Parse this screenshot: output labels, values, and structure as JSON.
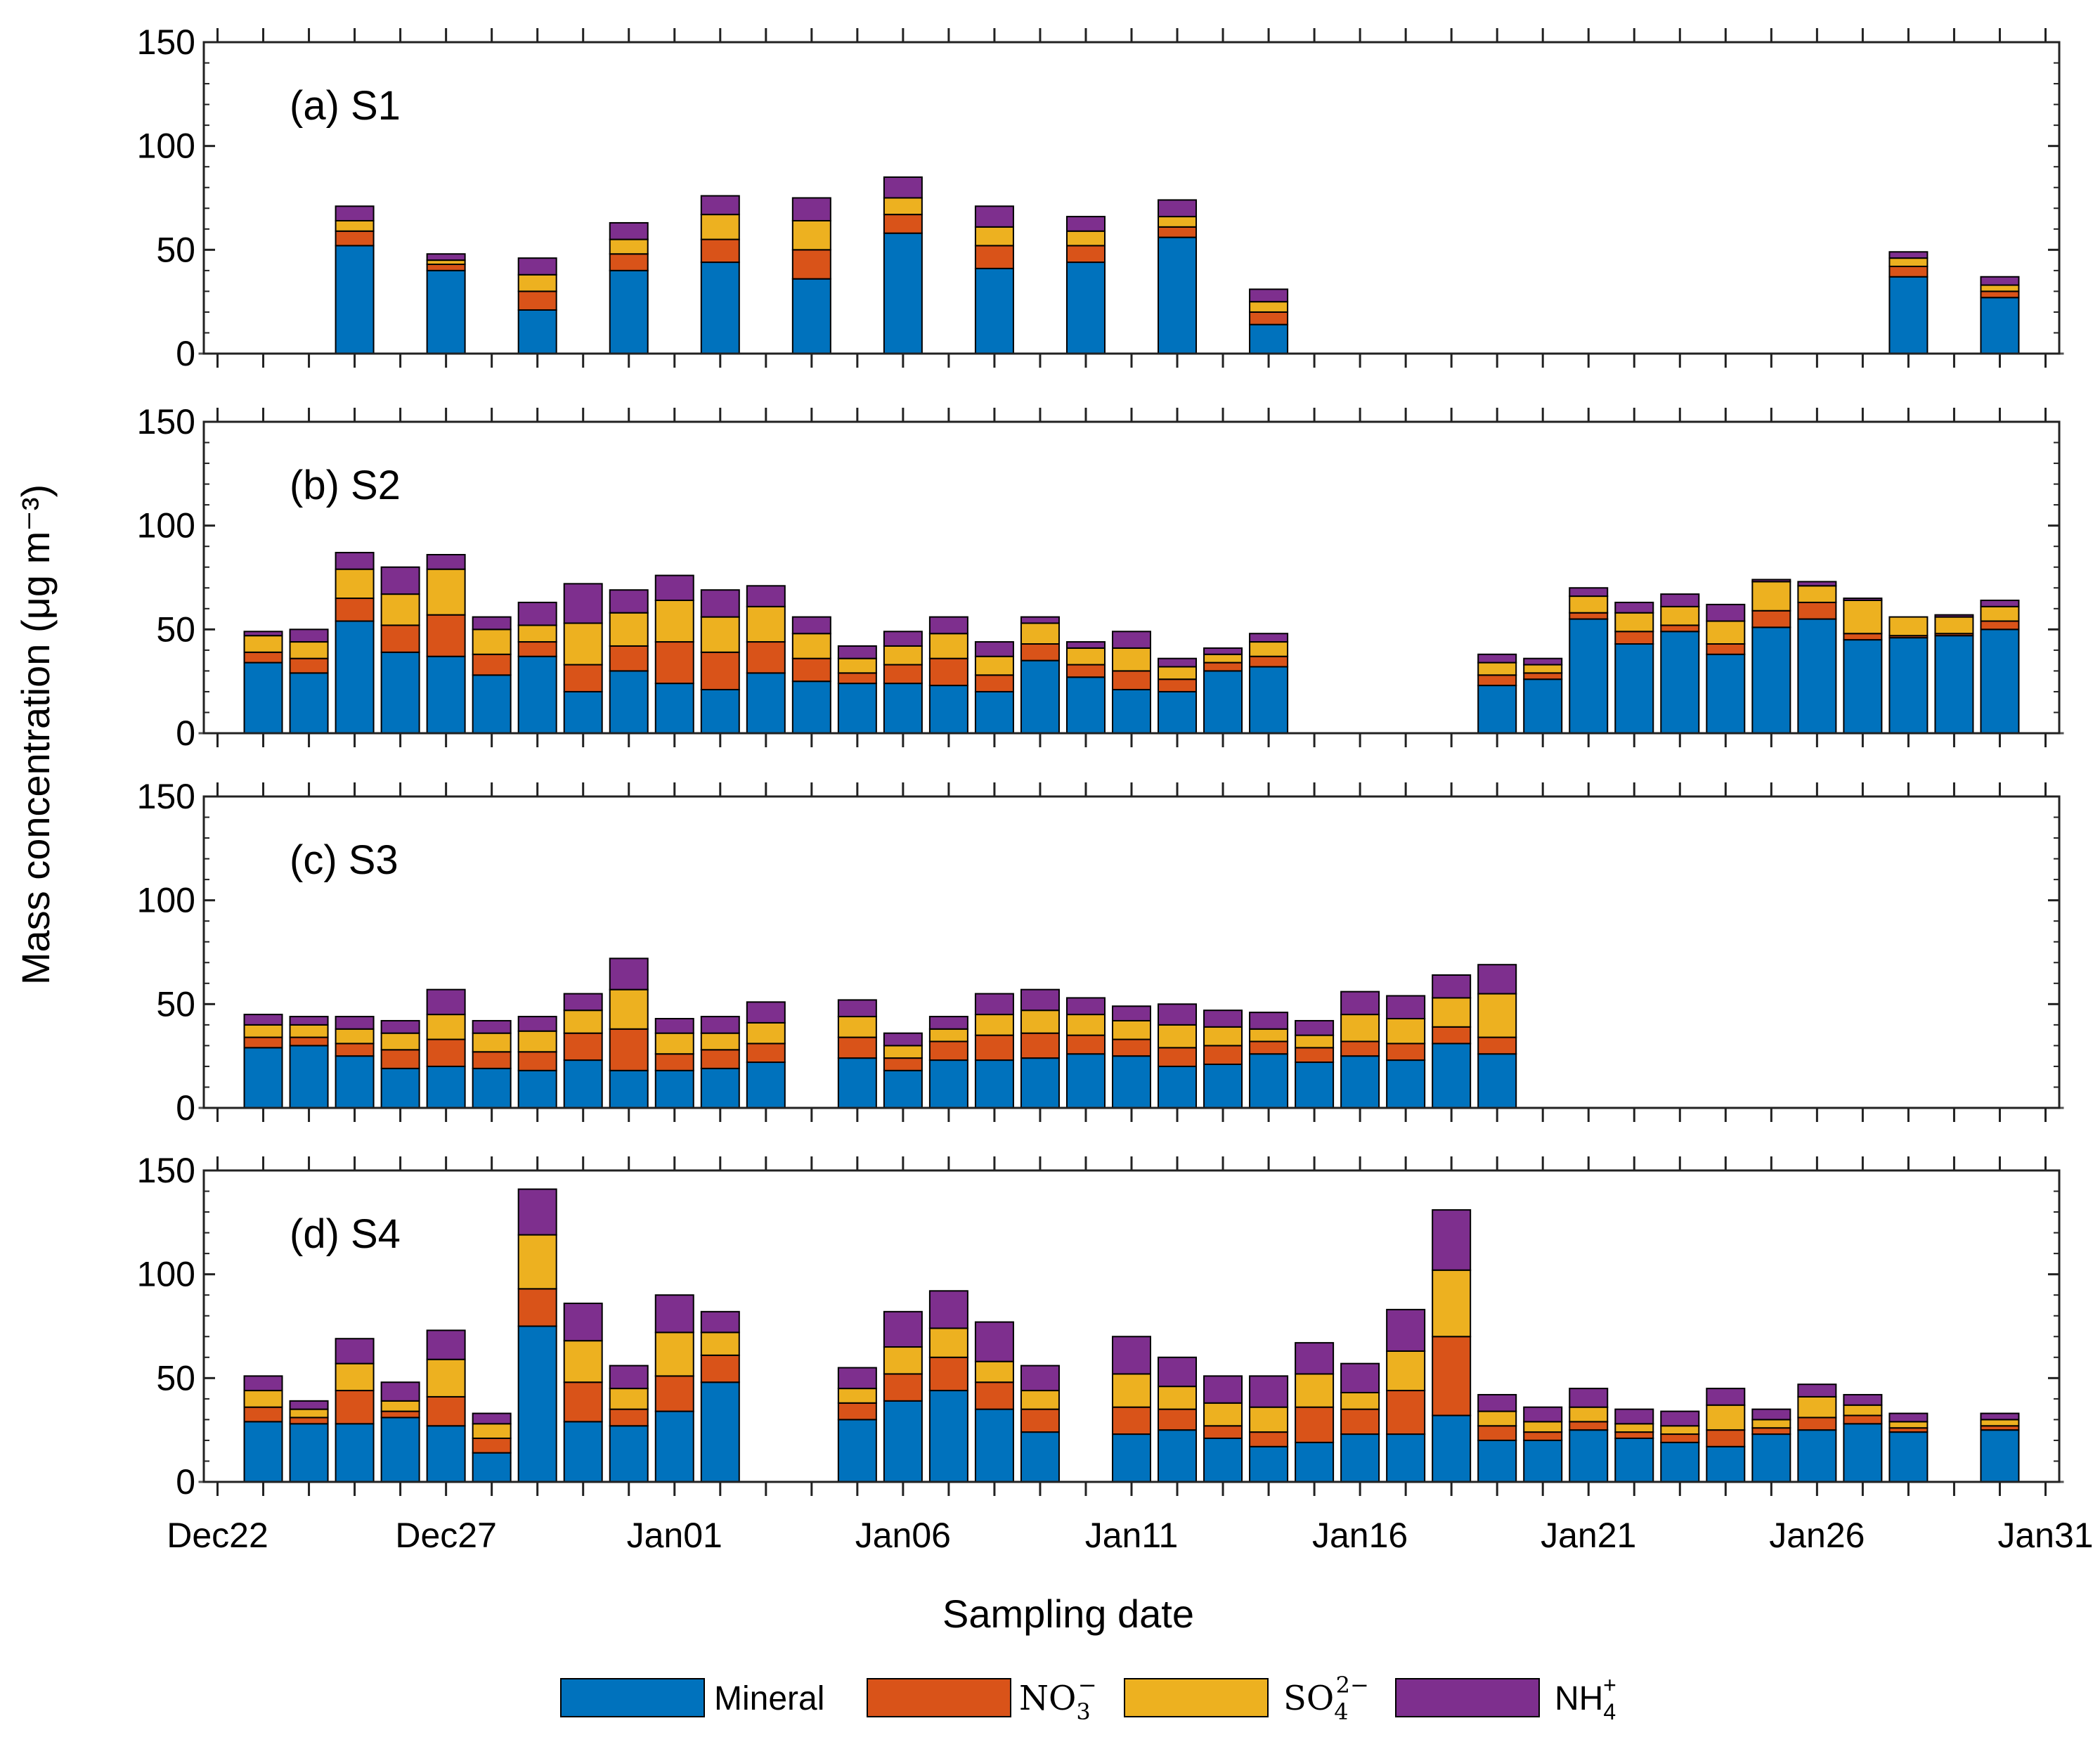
{
  "chart_data": {
    "type": "bar",
    "stacked": true,
    "xlabel": "Sampling date",
    "ylabel": "Mass concentration (μg m⁻³)",
    "ylim": [
      0,
      150
    ],
    "yticks": [
      0,
      50,
      100,
      150
    ],
    "xlim": [
      21.7,
      62.3
    ],
    "xticks": [
      {
        "x": 22,
        "label": "Dec22"
      },
      {
        "x": 27,
        "label": "Dec27"
      },
      {
        "x": 32,
        "label": "Jan01"
      },
      {
        "x": 37,
        "label": "Jan06"
      },
      {
        "x": 42,
        "label": "Jan11"
      },
      {
        "x": 47,
        "label": "Jan16"
      },
      {
        "x": 52,
        "label": "Jan21"
      },
      {
        "x": 57,
        "label": "Jan26"
      },
      {
        "x": 62,
        "label": "Jan31"
      }
    ],
    "day_ticks": [
      22,
      23,
      24,
      25,
      26,
      27,
      28,
      29,
      30,
      31,
      32,
      33,
      34,
      35,
      36,
      37,
      38,
      39,
      40,
      41,
      42,
      43,
      44,
      45,
      46,
      47,
      48,
      49,
      50,
      51,
      52,
      53,
      54,
      55,
      56,
      57,
      58,
      59,
      60,
      61,
      62
    ],
    "components": [
      {
        "key": "mineral",
        "color": "#0072BD"
      },
      {
        "key": "no3",
        "color": "#D95319"
      },
      {
        "key": "so4",
        "color": "#EDB120"
      },
      {
        "key": "nh4",
        "color": "#7E2F8E"
      }
    ],
    "legend": {
      "placement": "bottom",
      "mineral": "Mineral",
      "no3": {
        "base": "NO",
        "sub": "3",
        "sup": "−"
      },
      "so4": {
        "base": "SO",
        "sub": "4",
        "sup": "2−"
      },
      "nh4": {
        "base": "NH",
        "sub": "4",
        "sup": "+"
      }
    },
    "panels": [
      {
        "label": "(a) S1",
        "bars": [
          {
            "x": 25,
            "values": [
              52,
              7,
              5,
              7
            ]
          },
          {
            "x": 27,
            "values": [
              40,
              3,
              2,
              3
            ]
          },
          {
            "x": 29,
            "values": [
              21,
              9,
              8,
              8
            ]
          },
          {
            "x": 31,
            "values": [
              40,
              8,
              7,
              8
            ]
          },
          {
            "x": 33,
            "values": [
              44,
              11,
              12,
              9
            ]
          },
          {
            "x": 35,
            "values": [
              36,
              14,
              14,
              11
            ]
          },
          {
            "x": 37,
            "values": [
              58,
              9,
              8,
              10
            ]
          },
          {
            "x": 39,
            "values": [
              41,
              11,
              9,
              10
            ]
          },
          {
            "x": 41,
            "values": [
              44,
              8,
              7,
              7
            ]
          },
          {
            "x": 43,
            "values": [
              56,
              5,
              5,
              8
            ]
          },
          {
            "x": 45,
            "values": [
              14,
              6,
              5,
              6
            ]
          },
          {
            "x": 59,
            "values": [
              37,
              5,
              4,
              3
            ]
          },
          {
            "x": 61,
            "values": [
              27,
              3,
              3,
              4
            ]
          }
        ]
      },
      {
        "label": "(b) S2",
        "bars": [
          {
            "x": 23,
            "values": [
              34,
              5,
              8,
              2
            ]
          },
          {
            "x": 24,
            "values": [
              29,
              7,
              8,
              6
            ]
          },
          {
            "x": 25,
            "values": [
              54,
              11,
              14,
              8
            ]
          },
          {
            "x": 26,
            "values": [
              39,
              13,
              15,
              13
            ]
          },
          {
            "x": 27,
            "values": [
              37,
              20,
              22,
              7
            ]
          },
          {
            "x": 28,
            "values": [
              28,
              10,
              12,
              6
            ]
          },
          {
            "x": 29,
            "values": [
              37,
              7,
              8,
              11
            ]
          },
          {
            "x": 30,
            "values": [
              20,
              13,
              20,
              19
            ]
          },
          {
            "x": 31,
            "values": [
              30,
              12,
              16,
              11
            ]
          },
          {
            "x": 32,
            "values": [
              24,
              20,
              20,
              12
            ]
          },
          {
            "x": 33,
            "values": [
              21,
              18,
              17,
              13
            ]
          },
          {
            "x": 34,
            "values": [
              29,
              15,
              17,
              10
            ]
          },
          {
            "x": 35,
            "values": [
              25,
              11,
              12,
              8
            ]
          },
          {
            "x": 36,
            "values": [
              24,
              5,
              7,
              6
            ]
          },
          {
            "x": 37,
            "values": [
              24,
              9,
              9,
              7
            ]
          },
          {
            "x": 38,
            "values": [
              23,
              13,
              12,
              8
            ]
          },
          {
            "x": 39,
            "values": [
              20,
              8,
              9,
              7
            ]
          },
          {
            "x": 40,
            "values": [
              35,
              8,
              10,
              3
            ]
          },
          {
            "x": 41,
            "values": [
              27,
              6,
              8,
              3
            ]
          },
          {
            "x": 42,
            "values": [
              21,
              9,
              11,
              8
            ]
          },
          {
            "x": 43,
            "values": [
              20,
              6,
              6,
              4
            ]
          },
          {
            "x": 44,
            "values": [
              30,
              4,
              4,
              3
            ]
          },
          {
            "x": 45,
            "values": [
              32,
              5,
              7,
              4
            ]
          },
          {
            "x": 50,
            "values": [
              23,
              5,
              6,
              4
            ]
          },
          {
            "x": 51,
            "values": [
              26,
              3,
              4,
              3
            ]
          },
          {
            "x": 52,
            "values": [
              55,
              3,
              8,
              4
            ]
          },
          {
            "x": 53,
            "values": [
              43,
              6,
              9,
              5
            ]
          },
          {
            "x": 54,
            "values": [
              49,
              3,
              9,
              6
            ]
          },
          {
            "x": 55,
            "values": [
              38,
              5,
              11,
              8
            ]
          },
          {
            "x": 56,
            "values": [
              51,
              8,
              14,
              1
            ]
          },
          {
            "x": 57,
            "values": [
              55,
              8,
              8,
              2
            ]
          },
          {
            "x": 58,
            "values": [
              45,
              3,
              16,
              1
            ]
          },
          {
            "x": 59,
            "values": [
              46,
              1,
              9,
              0
            ]
          },
          {
            "x": 60,
            "values": [
              47,
              1,
              8,
              1
            ]
          },
          {
            "x": 61,
            "values": [
              50,
              4,
              7,
              3
            ]
          }
        ]
      },
      {
        "label": "(c) S3",
        "bars": [
          {
            "x": 23,
            "values": [
              29,
              5,
              6,
              5
            ]
          },
          {
            "x": 24,
            "values": [
              30,
              4,
              6,
              4
            ]
          },
          {
            "x": 25,
            "values": [
              25,
              6,
              7,
              6
            ]
          },
          {
            "x": 26,
            "values": [
              19,
              9,
              8,
              6
            ]
          },
          {
            "x": 27,
            "values": [
              20,
              13,
              12,
              12
            ]
          },
          {
            "x": 28,
            "values": [
              19,
              8,
              9,
              6
            ]
          },
          {
            "x": 29,
            "values": [
              18,
              9,
              10,
              7
            ]
          },
          {
            "x": 30,
            "values": [
              23,
              13,
              11,
              8
            ]
          },
          {
            "x": 31,
            "values": [
              18,
              20,
              19,
              15
            ]
          },
          {
            "x": 32,
            "values": [
              18,
              8,
              10,
              7
            ]
          },
          {
            "x": 33,
            "values": [
              19,
              9,
              8,
              8
            ]
          },
          {
            "x": 34,
            "values": [
              22,
              9,
              10,
              10
            ]
          },
          {
            "x": 36,
            "values": [
              24,
              10,
              10,
              8
            ]
          },
          {
            "x": 37,
            "values": [
              18,
              6,
              6,
              6
            ]
          },
          {
            "x": 38,
            "values": [
              23,
              9,
              6,
              6
            ]
          },
          {
            "x": 39,
            "values": [
              23,
              12,
              10,
              10
            ]
          },
          {
            "x": 40,
            "values": [
              24,
              12,
              11,
              10
            ]
          },
          {
            "x": 41,
            "values": [
              26,
              9,
              10,
              8
            ]
          },
          {
            "x": 42,
            "values": [
              25,
              8,
              9,
              7
            ]
          },
          {
            "x": 43,
            "values": [
              20,
              9,
              11,
              10
            ]
          },
          {
            "x": 44,
            "values": [
              21,
              9,
              9,
              8
            ]
          },
          {
            "x": 45,
            "values": [
              26,
              6,
              6,
              8
            ]
          },
          {
            "x": 46,
            "values": [
              22,
              7,
              6,
              7
            ]
          },
          {
            "x": 47,
            "values": [
              25,
              7,
              13,
              11
            ]
          },
          {
            "x": 48,
            "values": [
              23,
              8,
              12,
              11
            ]
          },
          {
            "x": 49,
            "values": [
              31,
              8,
              14,
              11
            ]
          },
          {
            "x": 50,
            "values": [
              26,
              8,
              21,
              14
            ]
          }
        ]
      },
      {
        "label": "(d) S4",
        "bars": [
          {
            "x": 23,
            "values": [
              29,
              7,
              8,
              7
            ]
          },
          {
            "x": 24,
            "values": [
              28,
              3,
              4,
              4
            ]
          },
          {
            "x": 25,
            "values": [
              28,
              16,
              13,
              12
            ]
          },
          {
            "x": 26,
            "values": [
              31,
              3,
              5,
              9
            ]
          },
          {
            "x": 27,
            "values": [
              27,
              14,
              18,
              14
            ]
          },
          {
            "x": 28,
            "values": [
              14,
              7,
              7,
              5
            ]
          },
          {
            "x": 29,
            "values": [
              75,
              18,
              26,
              22
            ]
          },
          {
            "x": 30,
            "values": [
              29,
              19,
              20,
              18
            ]
          },
          {
            "x": 31,
            "values": [
              27,
              8,
              10,
              11
            ]
          },
          {
            "x": 32,
            "values": [
              34,
              17,
              21,
              18
            ]
          },
          {
            "x": 33,
            "values": [
              48,
              13,
              11,
              10
            ]
          },
          {
            "x": 36,
            "values": [
              30,
              8,
              7,
              10
            ]
          },
          {
            "x": 37,
            "values": [
              39,
              13,
              13,
              17
            ]
          },
          {
            "x": 38,
            "values": [
              44,
              16,
              14,
              18
            ]
          },
          {
            "x": 39,
            "values": [
              35,
              13,
              10,
              19
            ]
          },
          {
            "x": 40,
            "values": [
              24,
              11,
              9,
              12
            ]
          },
          {
            "x": 42,
            "values": [
              23,
              13,
              16,
              18
            ]
          },
          {
            "x": 43,
            "values": [
              25,
              10,
              11,
              14
            ]
          },
          {
            "x": 44,
            "values": [
              21,
              6,
              11,
              13
            ]
          },
          {
            "x": 45,
            "values": [
              17,
              7,
              12,
              15
            ]
          },
          {
            "x": 46,
            "values": [
              19,
              17,
              16,
              15
            ]
          },
          {
            "x": 47,
            "values": [
              23,
              12,
              8,
              14
            ]
          },
          {
            "x": 48,
            "values": [
              23,
              21,
              19,
              20
            ]
          },
          {
            "x": 49,
            "values": [
              32,
              38,
              32,
              29
            ]
          },
          {
            "x": 50,
            "values": [
              20,
              7,
              7,
              8
            ]
          },
          {
            "x": 51,
            "values": [
              20,
              4,
              5,
              7
            ]
          },
          {
            "x": 52,
            "values": [
              25,
              4,
              7,
              9
            ]
          },
          {
            "x": 53,
            "values": [
              21,
              3,
              4,
              7
            ]
          },
          {
            "x": 54,
            "values": [
              19,
              4,
              4,
              7
            ]
          },
          {
            "x": 55,
            "values": [
              17,
              8,
              12,
              8
            ]
          },
          {
            "x": 56,
            "values": [
              23,
              3,
              4,
              5
            ]
          },
          {
            "x": 57,
            "values": [
              25,
              6,
              10,
              6
            ]
          },
          {
            "x": 58,
            "values": [
              28,
              4,
              5,
              5
            ]
          },
          {
            "x": 59,
            "values": [
              24,
              2,
              3,
              4
            ]
          },
          {
            "x": 61,
            "values": [
              25,
              2,
              3,
              3
            ]
          }
        ]
      }
    ]
  }
}
